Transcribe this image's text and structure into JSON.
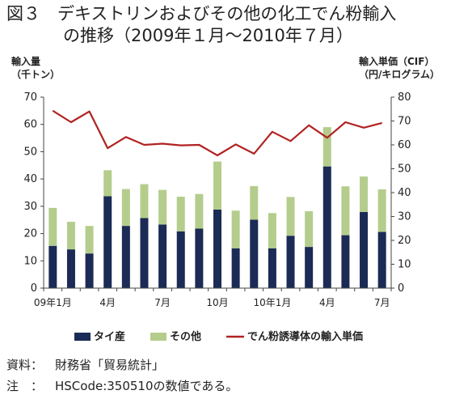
{
  "title_line1": "図３　デキストリンおよびその他の化工でん粉輸入",
  "title_line2": "の推移（2009年１月～2010年７月）",
  "left_axis_label": [
    "輸入量",
    "（千トン）"
  ],
  "right_axis_label": [
    "輸入単価（CIF）",
    "（円/キログラム）"
  ],
  "footer": {
    "source_key": "資料：",
    "source_text": "財務省「貿易統計」",
    "note_key": "注　：",
    "note_text": "HSCode:350510の数値である。"
  },
  "chart_data": {
    "type": "bar",
    "stacked": true,
    "categories": [
      "2009-01",
      "2009-02",
      "2009-03",
      "2009-04",
      "2009-05",
      "2009-06",
      "2009-07",
      "2009-08",
      "2009-09",
      "2009-10",
      "2009-11",
      "2009-12",
      "2010-01",
      "2010-02",
      "2010-03",
      "2010-04",
      "2010-05",
      "2010-06",
      "2010-07"
    ],
    "x_tick_labels": [
      "09年1月",
      "",
      "",
      "4月",
      "",
      "",
      "7月",
      "",
      "",
      "10月",
      "",
      "",
      "10年1月",
      "",
      "",
      "4月",
      "",
      "",
      "7月"
    ],
    "series": [
      {
        "name": "タイ産",
        "axis": "left",
        "color": "#1b2b55",
        "values": [
          15.5,
          14.2,
          12.7,
          33.7,
          22.8,
          25.7,
          23.3,
          20.8,
          21.8,
          28.8,
          14.6,
          25.1,
          14.6,
          19.2,
          15.1,
          44.6,
          19.4,
          27.9,
          20.6
        ]
      },
      {
        "name": "その他",
        "axis": "left",
        "color": "#b4cd8c",
        "values": [
          13.9,
          10.1,
          10.1,
          9.5,
          13.5,
          12.4,
          12.7,
          12.7,
          12.7,
          17.6,
          13.8,
          12.3,
          12.9,
          14.2,
          13.1,
          14.4,
          17.9,
          13.0,
          15.6
        ]
      },
      {
        "name": "でん粉誘導体の輸入単価",
        "axis": "right",
        "type": "line",
        "color": "#b22222",
        "values": [
          74.3,
          69.5,
          74.0,
          58.6,
          63.3,
          60.0,
          60.5,
          59.8,
          60.0,
          55.6,
          60.2,
          56.3,
          65.5,
          61.6,
          68.2,
          63.0,
          69.5,
          67.2,
          69.2
        ]
      }
    ],
    "left_axis": {
      "ylim": [
        0,
        70
      ],
      "ticks": [
        0,
        10,
        20,
        30,
        40,
        50,
        60,
        70
      ]
    },
    "right_axis": {
      "ylim": [
        0,
        80
      ],
      "ticks": [
        0,
        10,
        20,
        30,
        40,
        50,
        60,
        70,
        80
      ]
    },
    "grid": false,
    "legend": "bottom"
  }
}
